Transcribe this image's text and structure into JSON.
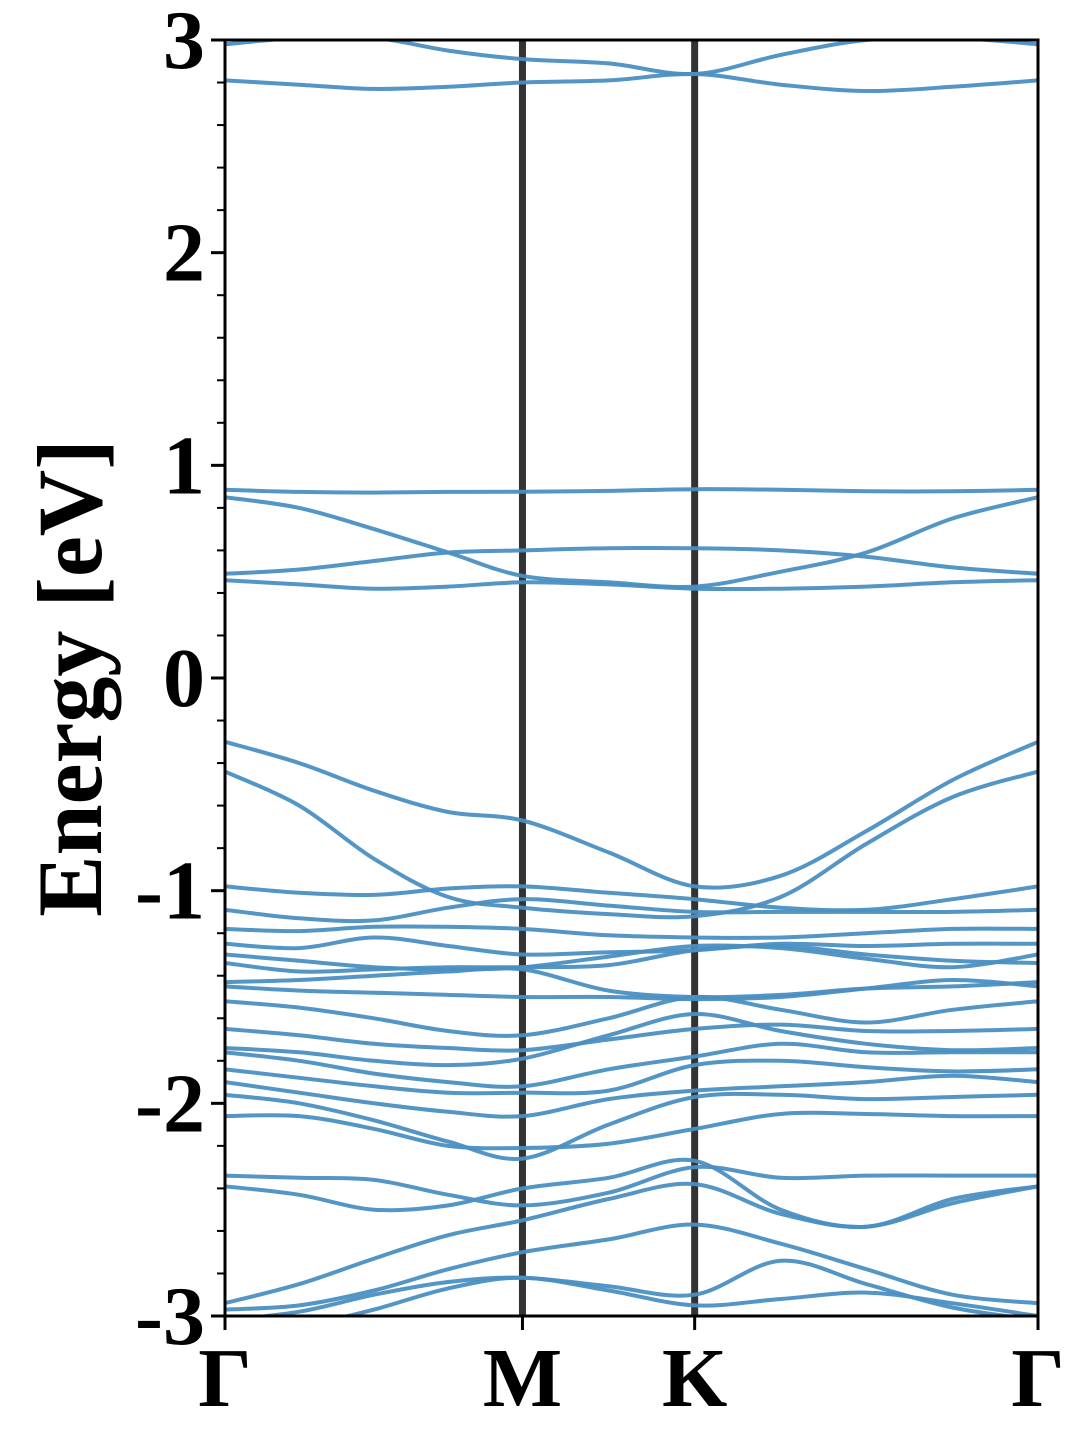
{
  "chart_data": {
    "type": "band-structure",
    "y_label": "Energy [eV]",
    "color": "#4a8fc2",
    "x": [
      0,
      0.144,
      0.289,
      0.433,
      0.577,
      0.744,
      0.911,
      1.078,
      1.244,
      1.411,
      1.577
    ],
    "xlim": [
      0,
      1.577
    ],
    "xticks": [
      {
        "value": 0,
        "label": "Γ"
      },
      {
        "value": 0.577,
        "label": "M"
      },
      {
        "value": 0.911,
        "label": "K"
      },
      {
        "value": 1.577,
        "label": "Γ"
      }
    ],
    "ylim": [
      -3,
      3
    ],
    "yticks": [
      -3,
      -2,
      -1,
      0,
      1,
      2,
      3
    ],
    "yminorticks": [
      -2.8,
      -2.6,
      -2.4,
      -2.2,
      -1.8,
      -1.6,
      -1.4,
      -1.2,
      -0.8,
      -0.6,
      -0.4,
      -0.2,
      0.2,
      0.4,
      0.6,
      0.8,
      1.2,
      1.4,
      1.6,
      1.8,
      2.2,
      2.4,
      2.6,
      2.8
    ],
    "series": [
      {
        "values": [
          2.98,
          3.01,
          3.01,
          2.95,
          2.91,
          2.89,
          2.84,
          2.93,
          3.0,
          3.01,
          2.98
        ]
      },
      {
        "values": [
          2.81,
          2.79,
          2.77,
          2.78,
          2.8,
          2.81,
          2.84,
          2.79,
          2.76,
          2.78,
          2.81
        ]
      },
      {
        "values": [
          0.885,
          0.875,
          0.872,
          0.875,
          0.876,
          0.88,
          0.888,
          0.885,
          0.878,
          0.878,
          0.885
        ]
      },
      {
        "values": [
          0.85,
          0.8,
          0.7,
          0.59,
          0.48,
          0.45,
          0.43,
          0.5,
          0.59,
          0.75,
          0.85
        ]
      },
      {
        "values": [
          0.49,
          0.51,
          0.55,
          0.59,
          0.6,
          0.61,
          0.61,
          0.6,
          0.57,
          0.52,
          0.49
        ]
      },
      {
        "values": [
          0.46,
          0.44,
          0.42,
          0.43,
          0.45,
          0.44,
          0.42,
          0.42,
          0.43,
          0.45,
          0.46
        ]
      },
      {
        "values": [
          -0.3,
          -0.4,
          -0.53,
          -0.63,
          -0.67,
          -0.82,
          -0.98,
          -0.93,
          -0.72,
          -0.48,
          -0.3
        ]
      },
      {
        "values": [
          -0.44,
          -0.6,
          -0.85,
          -1.03,
          -1.08,
          -1.11,
          -1.12,
          -1.03,
          -0.78,
          -0.56,
          -0.44
        ]
      },
      {
        "values": [
          -0.98,
          -1.01,
          -1.02,
          -0.99,
          -0.98,
          -1.01,
          -1.04,
          -1.08,
          -1.09,
          -1.04,
          -0.98
        ]
      },
      {
        "values": [
          -1.09,
          -1.13,
          -1.14,
          -1.08,
          -1.04,
          -1.07,
          -1.1,
          -1.1,
          -1.1,
          -1.1,
          -1.09
        ]
      },
      {
        "values": [
          -1.18,
          -1.19,
          -1.17,
          -1.17,
          -1.18,
          -1.21,
          -1.22,
          -1.22,
          -1.2,
          -1.18,
          -1.18
        ]
      },
      {
        "values": [
          -1.25,
          -1.27,
          -1.22,
          -1.26,
          -1.3,
          -1.29,
          -1.28,
          -1.25,
          -1.26,
          -1.25,
          -1.25
        ]
      },
      {
        "values": [
          -1.3,
          -1.33,
          -1.36,
          -1.37,
          -1.36,
          -1.31,
          -1.26,
          -1.27,
          -1.32,
          -1.36,
          -1.3
        ]
      },
      {
        "values": [
          -1.34,
          -1.38,
          -1.37,
          -1.36,
          -1.36,
          -1.35,
          -1.28,
          -1.26,
          -1.3,
          -1.33,
          -1.34
        ]
      },
      {
        "values": [
          -1.43,
          -1.42,
          -1.4,
          -1.38,
          -1.37,
          -1.47,
          -1.5,
          -1.49,
          -1.46,
          -1.45,
          -1.43
        ]
      },
      {
        "values": [
          -1.45,
          -1.47,
          -1.48,
          -1.49,
          -1.5,
          -1.5,
          -1.51,
          -1.5,
          -1.46,
          -1.42,
          -1.45
        ]
      },
      {
        "values": [
          -1.52,
          -1.55,
          -1.6,
          -1.66,
          -1.68,
          -1.6,
          -1.5,
          -1.56,
          -1.62,
          -1.56,
          -1.52
        ]
      },
      {
        "values": [
          -1.65,
          -1.68,
          -1.72,
          -1.74,
          -1.75,
          -1.7,
          -1.65,
          -1.63,
          -1.66,
          -1.66,
          -1.65
        ]
      },
      {
        "values": [
          -1.74,
          -1.76,
          -1.8,
          -1.82,
          -1.79,
          -1.68,
          -1.58,
          -1.66,
          -1.72,
          -1.75,
          -1.74
        ]
      },
      {
        "values": [
          -1.76,
          -1.8,
          -1.86,
          -1.9,
          -1.92,
          -1.84,
          -1.78,
          -1.72,
          -1.76,
          -1.76,
          -1.76
        ]
      },
      {
        "values": [
          -1.84,
          -1.88,
          -1.92,
          -1.95,
          -1.95,
          -1.94,
          -1.82,
          -1.8,
          -1.83,
          -1.85,
          -1.84
        ]
      },
      {
        "values": [
          -1.9,
          -1.95,
          -2.0,
          -2.04,
          -2.06,
          -1.98,
          -1.94,
          -1.92,
          -1.9,
          -1.87,
          -1.9
        ]
      },
      {
        "values": [
          -1.96,
          -2.0,
          -2.08,
          -2.18,
          -2.26,
          -2.1,
          -1.97,
          -1.96,
          -1.98,
          -1.97,
          -1.96
        ]
      },
      {
        "values": [
          -2.06,
          -2.06,
          -2.12,
          -2.2,
          -2.21,
          -2.19,
          -2.12,
          -2.05,
          -2.05,
          -2.06,
          -2.06
        ]
      },
      {
        "values": [
          -2.34,
          -2.35,
          -2.36,
          -2.43,
          -2.48,
          -2.42,
          -2.3,
          -2.35,
          -2.34,
          -2.34,
          -2.34
        ]
      },
      {
        "values": [
          -2.39,
          -2.43,
          -2.5,
          -2.48,
          -2.4,
          -2.35,
          -2.27,
          -2.5,
          -2.58,
          -2.45,
          -2.39
        ]
      },
      {
        "values": [
          -2.94,
          -2.85,
          -2.73,
          -2.62,
          -2.55,
          -2.45,
          -2.38,
          -2.52,
          -2.58,
          -2.47,
          -2.39
        ]
      },
      {
        "values": [
          -2.97,
          -2.95,
          -2.88,
          -2.78,
          -2.7,
          -2.64,
          -2.57,
          -2.66,
          -2.78,
          -2.9,
          -2.94
        ]
      },
      {
        "values": [
          -3.02,
          -2.98,
          -2.9,
          -2.84,
          -2.82,
          -2.86,
          -2.9,
          -2.74,
          -2.85,
          -2.96,
          -3.02
        ]
      },
      {
        "values": [
          -3.1,
          -3.05,
          -2.97,
          -2.87,
          -2.82,
          -2.88,
          -2.95,
          -2.92,
          -2.89,
          -2.94,
          -3.0
        ]
      }
    ]
  }
}
